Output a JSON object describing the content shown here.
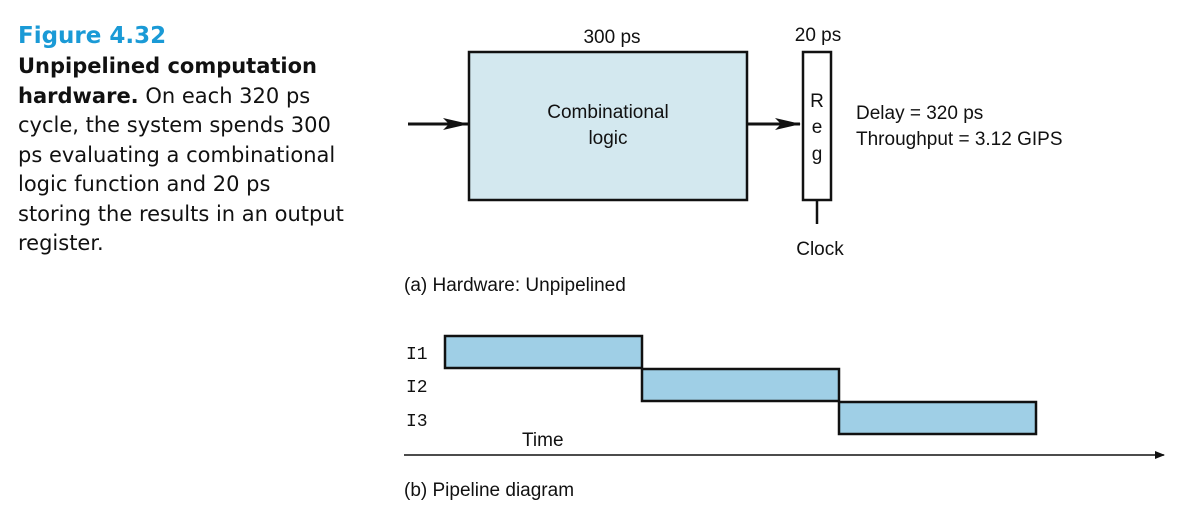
{
  "caption": {
    "figure_number": "Figure 4.32",
    "title": "Unpipelined computation hardware.",
    "body": " On each 320 ps cycle, the system spends 300 ps evaluating a combinational logic function and 20 ps storing the results in an output register."
  },
  "hardware": {
    "logic_delay": "300 ps",
    "reg_delay": "20 ps",
    "logic_label_1": "Combinational",
    "logic_label_2": "logic",
    "reg_letters": [
      "R",
      "e",
      "g"
    ],
    "clock_label": "Clock",
    "delay_text": "Delay = 320 ps",
    "throughput_text": "Throughput = 3.12 GIPS",
    "panel_label": "(a) Hardware: Unpipelined"
  },
  "pipeline": {
    "instructions": [
      "I1",
      "I2",
      "I3"
    ],
    "time_label": "Time",
    "panel_label": "(b) Pipeline diagram"
  },
  "colors": {
    "caption_accent": "#1a9ad6",
    "logic_fill": "#d3e8ef",
    "bar_fill": "#9fcfe6"
  }
}
